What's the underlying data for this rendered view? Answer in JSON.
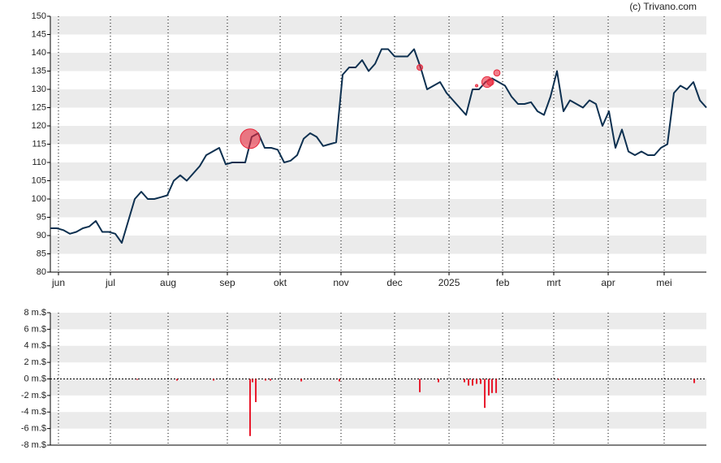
{
  "watermark": "(c) Trivano.com",
  "chart_data": [
    {
      "type": "line",
      "color": "#0d3050",
      "xlim": [
        0,
        101
      ],
      "ylim": [
        80,
        150
      ],
      "yticks": [
        80,
        85,
        90,
        95,
        100,
        105,
        110,
        115,
        120,
        125,
        130,
        135,
        140,
        145,
        150
      ],
      "xticks": [
        {
          "value": 1.25,
          "label": "jun"
        },
        {
          "value": 9.25,
          "label": "jul"
        },
        {
          "value": 18.13,
          "label": "aug"
        },
        {
          "value": 27.25,
          "label": "sep"
        },
        {
          "value": 35.38,
          "label": "okt"
        },
        {
          "value": 44.75,
          "label": "nov"
        },
        {
          "value": 53,
          "label": "dec"
        },
        {
          "value": 61.38,
          "label": "2025"
        },
        {
          "value": 69.63,
          "label": "feb"
        },
        {
          "value": 77.5,
          "label": "mrt"
        },
        {
          "value": 85.88,
          "label": "apr"
        },
        {
          "value": 94.5,
          "label": "mei"
        }
      ],
      "striped": true,
      "x": [
        0,
        1,
        2,
        3,
        4,
        5,
        6,
        7,
        8,
        9,
        10,
        11,
        12,
        13,
        14,
        15,
        16,
        17,
        18,
        19,
        20,
        21,
        22,
        23,
        24,
        25,
        26,
        27,
        28,
        29,
        30,
        31,
        32,
        33,
        34,
        35,
        36,
        37,
        38,
        39,
        40,
        41,
        42,
        43,
        44,
        45,
        46,
        47,
        48,
        49,
        50,
        51,
        52,
        53,
        54,
        55,
        56,
        57,
        58,
        59,
        60,
        61,
        62,
        63,
        64,
        65,
        66,
        67,
        68,
        69,
        70,
        71,
        72,
        73,
        74,
        75,
        76,
        77,
        78,
        79,
        80,
        81,
        82,
        83,
        84,
        85,
        86,
        87,
        88,
        89,
        90,
        91,
        92,
        93,
        94,
        95,
        96,
        97,
        98,
        99,
        100,
        101
      ],
      "values": [
        92,
        92,
        91.5,
        90.5,
        91,
        92,
        92.5,
        94,
        91,
        91,
        90.5,
        88,
        94,
        100,
        102,
        100,
        100,
        100.5,
        101,
        105,
        106.5,
        105,
        107,
        109,
        112,
        113,
        114,
        109.5,
        110,
        110,
        110,
        117,
        118,
        114,
        114,
        113.5,
        110,
        110.5,
        112,
        116.5,
        118,
        117,
        114.5,
        115,
        115.5,
        134,
        136,
        136,
        138,
        135,
        137,
        141,
        141,
        139,
        139,
        139,
        141,
        136,
        130,
        131,
        132,
        129,
        127,
        125,
        123,
        130,
        130,
        132,
        133,
        132,
        131,
        128,
        126,
        126,
        126.5,
        124,
        123,
        128,
        135,
        124,
        127,
        126,
        125,
        127,
        126,
        120,
        124,
        114,
        119,
        113,
        112,
        113,
        112,
        112,
        114,
        115,
        129,
        131,
        130,
        132,
        127,
        125
      ],
      "bubbles": {
        "color": "#e8283c",
        "x": [
          30.75,
          56.88,
          65.63,
          67.25,
          67.75,
          68.75
        ],
        "values": [
          116.5,
          136,
          131,
          132,
          132,
          134.5
        ],
        "sizes": [
          6.9,
          1.6,
          0.3,
          3.5,
          2,
          1.8
        ]
      }
    },
    {
      "type": "bar",
      "color": "#e8192c",
      "xlim": [
        0,
        101
      ],
      "ylim": [
        -8,
        8
      ],
      "yticks": [
        {
          "value": -8,
          "label": "-8 m.$"
        },
        {
          "value": -6,
          "label": "-6 m.$"
        },
        {
          "value": -4,
          "label": "-4 m.$"
        },
        {
          "value": -2,
          "label": "-2 m.$"
        },
        {
          "value": 0,
          "label": "0 m.$"
        },
        {
          "value": 2,
          "label": "2 m.$"
        },
        {
          "value": 4,
          "label": "4 m.$"
        },
        {
          "value": 6,
          "label": "6 m.$"
        },
        {
          "value": 8,
          "label": "8 m.$"
        }
      ],
      "striped": true,
      "x": [
        13.38,
        19.5,
        25.13,
        30.75,
        31.13,
        31.63,
        33.13,
        33.88,
        38.63,
        44.5,
        56.88,
        59.75,
        63.75,
        64.38,
        65,
        65.63,
        66.25,
        66.88,
        67.5,
        68,
        68.63,
        78.25,
        99.13
      ],
      "values": [
        -0.1,
        -0.2,
        -0.2,
        -6.9,
        -0.4,
        -2.8,
        -0.2,
        -0.2,
        -0.3,
        -0.3,
        -1.6,
        -0.4,
        -0.4,
        -0.8,
        -0.8,
        -0.6,
        -0.6,
        -3.5,
        -2.0,
        -1.7,
        -1.7,
        -0.1,
        -0.5
      ]
    }
  ]
}
